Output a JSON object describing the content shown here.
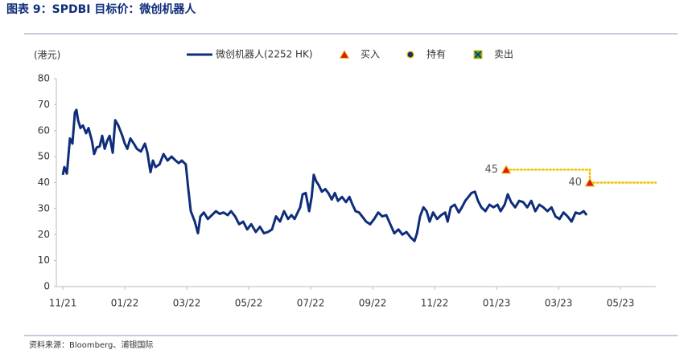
{
  "chart_data": {
    "type": "line",
    "title": "图表 9：SPDBI 目标价：微创机器人",
    "y_label": "(港元)",
    "source": "资料来源：Bloomberg、浦银国际",
    "xlim": [
      -0.21,
      19.14
    ],
    "xticks": [
      {
        "value": 0,
        "label": "11/21"
      },
      {
        "value": 2,
        "label": "01/22"
      },
      {
        "value": 4,
        "label": "03/22"
      },
      {
        "value": 6,
        "label": "05/22"
      },
      {
        "value": 8,
        "label": "07/22"
      },
      {
        "value": 10,
        "label": "09/22"
      },
      {
        "value": 12,
        "label": "11/22"
      },
      {
        "value": 14,
        "label": "01/23"
      },
      {
        "value": 16,
        "label": "03/23"
      },
      {
        "value": 18,
        "label": "05/23"
      }
    ],
    "ylim": [
      0,
      80
    ],
    "yticks": [
      0,
      10,
      20,
      30,
      40,
      50,
      60,
      70,
      80
    ],
    "grid": false,
    "series": [
      {
        "name": "微创机器人(2252 HK)",
        "color": "#0f2d7a",
        "marker": "line",
        "x": [
          0,
          0.05,
          0.13,
          0.23,
          0.31,
          0.39,
          0.44,
          0.49,
          0.57,
          0.65,
          0.75,
          0.83,
          0.94,
          1.01,
          1.09,
          1.19,
          1.27,
          1.35,
          1.43,
          1.51,
          1.61,
          1.69,
          1.79,
          1.92,
          2.0,
          2.08,
          2.18,
          2.29,
          2.39,
          2.52,
          2.65,
          2.73,
          2.83,
          2.91,
          2.99,
          3.12,
          3.25,
          3.38,
          3.51,
          3.64,
          3.74,
          3.84,
          3.97,
          4.05,
          4.13,
          4.26,
          4.36,
          4.44,
          4.55,
          4.68,
          4.81,
          4.94,
          5.06,
          5.19,
          5.32,
          5.43,
          5.56,
          5.69,
          5.82,
          5.95,
          6.08,
          6.23,
          6.36,
          6.49,
          6.62,
          6.75,
          6.88,
          7.01,
          7.14,
          7.27,
          7.38,
          7.48,
          7.58,
          7.66,
          7.74,
          7.84,
          7.95,
          8.03,
          8.1,
          8.18,
          8.26,
          8.36,
          8.47,
          8.57,
          8.68,
          8.78,
          8.88,
          9.01,
          9.14,
          9.25,
          9.35,
          9.45,
          9.56,
          9.66,
          9.79,
          9.92,
          10.05,
          10.18,
          10.31,
          10.44,
          10.57,
          10.7,
          10.83,
          10.96,
          11.09,
          11.22,
          11.35,
          11.43,
          11.53,
          11.64,
          11.74,
          11.84,
          11.95,
          12.08,
          12.21,
          12.34,
          12.42,
          12.52,
          12.65,
          12.78,
          12.88,
          12.99,
          13.09,
          13.19,
          13.3,
          13.4,
          13.51,
          13.64,
          13.77,
          13.9,
          14.03,
          14.13,
          14.26,
          14.36,
          14.47,
          14.6,
          14.73,
          14.86,
          14.99,
          15.12,
          15.25,
          15.38,
          15.51,
          15.64,
          15.77,
          15.9,
          16.03,
          16.16,
          16.29,
          16.42,
          16.55,
          16.68,
          16.81,
          16.91
        ],
        "values": [
          43,
          46,
          43.5,
          57,
          55,
          67,
          68,
          64,
          61,
          62,
          59,
          61,
          56,
          51,
          53.5,
          54,
          58,
          53,
          56,
          58,
          51.5,
          64,
          62,
          58,
          55,
          53,
          57,
          55,
          53,
          52,
          55,
          51.5,
          44,
          48.5,
          46,
          47,
          51,
          48.5,
          50,
          48.5,
          47.5,
          48.5,
          47,
          37.5,
          29,
          25,
          20.5,
          27,
          28.5,
          26,
          27.5,
          29,
          28,
          28.5,
          27.5,
          29,
          27,
          24,
          25,
          22,
          24,
          21,
          23,
          20.5,
          21,
          22,
          27,
          25,
          29,
          26,
          27.5,
          26,
          28.5,
          30.5,
          35.5,
          36,
          29,
          34.5,
          43,
          40.5,
          39,
          36.5,
          37.5,
          36,
          33.5,
          36,
          33,
          34.5,
          32.5,
          34.5,
          31.5,
          29,
          28.5,
          27,
          25,
          24,
          26,
          28.5,
          27,
          27.5,
          24,
          20.5,
          22,
          20,
          21,
          19,
          17.5,
          20.5,
          27,
          30.5,
          29,
          25,
          28.5,
          26,
          27.5,
          28.5,
          25,
          30.5,
          31.5,
          28.5,
          30.5,
          33,
          34.5,
          36,
          36.5,
          33,
          30.5,
          29,
          31.5,
          30.5,
          31.5,
          29,
          31.5,
          35.5,
          32.5,
          30.5,
          33,
          32.5,
          30.5,
          33,
          29,
          31.5,
          30.5,
          29,
          30.5,
          27,
          26,
          28.5,
          27,
          25,
          28.5,
          28,
          29,
          27.5
        ]
      },
      {
        "name": "买入",
        "color": "#d71a1a",
        "marker": "triangle",
        "x": [
          14.31,
          17.01
        ],
        "values": [
          45,
          40
        ]
      },
      {
        "name": "持有",
        "color": "#1a2f6e",
        "marker": "circle",
        "x": [],
        "values": []
      },
      {
        "name": "卖出",
        "color": "#3aa33a",
        "marker": "square-x",
        "x": [],
        "values": []
      }
    ]
  }
}
